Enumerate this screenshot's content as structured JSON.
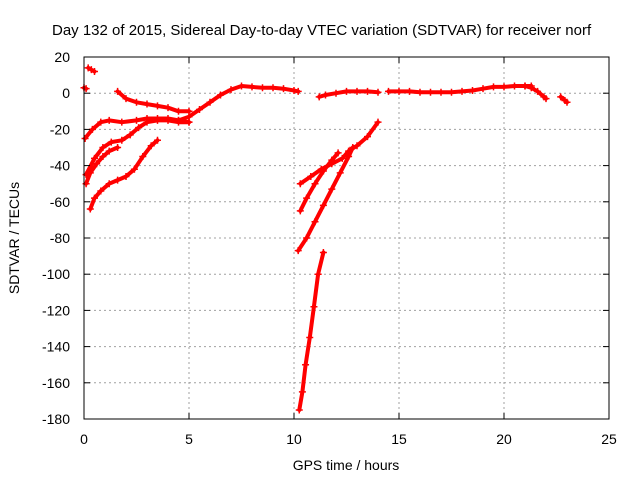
{
  "chart_data": {
    "type": "scatter",
    "title": "Day 132 of 2015, Sidereal Day-to-day VTEC variation (SDTVAR) for receiver norf",
    "xlabel": "GPS time / hours",
    "ylabel": "SDTVAR / TECUs",
    "xlim": [
      0,
      25
    ],
    "ylim": [
      -180,
      20
    ],
    "xticks": [
      0,
      5,
      10,
      15,
      20,
      25
    ],
    "yticks": [
      20,
      0,
      -20,
      -40,
      -60,
      -80,
      -100,
      -120,
      -140,
      -160,
      -180
    ],
    "grid": true,
    "marker": "plus",
    "color": "#ff0000",
    "series": [
      {
        "points": [
          [
            0.0,
            3
          ],
          [
            0.1,
            2.5
          ]
        ]
      },
      {
        "points": [
          [
            0.2,
            14
          ],
          [
            0.35,
            13
          ],
          [
            0.5,
            12
          ]
        ]
      },
      {
        "points": [
          [
            0.05,
            -25
          ],
          [
            0.4,
            -20
          ],
          [
            0.8,
            -16
          ],
          [
            1.2,
            -15
          ],
          [
            1.8,
            -16
          ],
          [
            2.5,
            -15
          ],
          [
            3.0,
            -14
          ],
          [
            3.5,
            -14
          ],
          [
            4.0,
            -14
          ],
          [
            4.5,
            -15
          ],
          [
            5.0,
            -16
          ]
        ]
      },
      {
        "points": [
          [
            0.1,
            -45
          ],
          [
            0.5,
            -36
          ],
          [
            0.9,
            -30
          ],
          [
            1.3,
            -27
          ],
          [
            1.8,
            -26
          ],
          [
            2.2,
            -23
          ],
          [
            2.6,
            -19
          ],
          [
            3.0,
            -16
          ],
          [
            3.5,
            -15
          ],
          [
            4.0,
            -15
          ],
          [
            4.5,
            -16
          ],
          [
            5.0,
            -16
          ]
        ]
      },
      {
        "points": [
          [
            0.1,
            -50
          ],
          [
            0.3,
            -44
          ],
          [
            0.6,
            -39
          ],
          [
            0.9,
            -35
          ],
          [
            1.2,
            -32
          ],
          [
            1.6,
            -30
          ]
        ]
      },
      {
        "points": [
          [
            0.3,
            -64
          ],
          [
            0.5,
            -58
          ],
          [
            0.8,
            -54
          ],
          [
            1.2,
            -50
          ],
          [
            1.6,
            -48
          ],
          [
            2.0,
            -46
          ],
          [
            2.4,
            -42
          ],
          [
            2.8,
            -35
          ],
          [
            3.2,
            -29
          ],
          [
            3.5,
            -26
          ]
        ]
      },
      {
        "points": [
          [
            1.6,
            1
          ],
          [
            2.0,
            -3
          ],
          [
            2.5,
            -5
          ],
          [
            3.0,
            -6
          ],
          [
            3.5,
            -7
          ],
          [
            4.0,
            -8
          ],
          [
            4.5,
            -10
          ],
          [
            5.0,
            -10
          ]
        ]
      },
      {
        "points": [
          [
            4.5,
            -15
          ],
          [
            5.0,
            -13
          ],
          [
            5.5,
            -9
          ],
          [
            6.0,
            -5
          ],
          [
            6.5,
            -1
          ],
          [
            7.0,
            2
          ],
          [
            7.5,
            4
          ],
          [
            8.0,
            3.5
          ],
          [
            8.5,
            3
          ],
          [
            9.0,
            3
          ],
          [
            9.5,
            2.5
          ],
          [
            10.0,
            1.5
          ],
          [
            10.2,
            1
          ]
        ]
      },
      {
        "points": [
          [
            11.2,
            -2
          ],
          [
            11.5,
            -1
          ],
          [
            12.0,
            0
          ],
          [
            12.5,
            1
          ],
          [
            13.0,
            1
          ],
          [
            13.5,
            1
          ],
          [
            14.0,
            0.5
          ]
        ]
      },
      {
        "points": [
          [
            14.5,
            1
          ],
          [
            15.0,
            1
          ],
          [
            15.5,
            1
          ],
          [
            16.0,
            0.5
          ],
          [
            16.5,
            0.5
          ],
          [
            17.0,
            0.5
          ],
          [
            17.5,
            0.5
          ],
          [
            18.0,
            1
          ],
          [
            18.5,
            1.5
          ],
          [
            19.0,
            2.5
          ],
          [
            19.5,
            3.5
          ],
          [
            20.0,
            3.5
          ],
          [
            20.5,
            4
          ],
          [
            21.0,
            4
          ],
          [
            21.3,
            4
          ]
        ]
      },
      {
        "points": [
          [
            21.0,
            4
          ],
          [
            21.3,
            3
          ],
          [
            21.6,
            1
          ],
          [
            21.9,
            -2
          ],
          [
            22.0,
            -3
          ]
        ]
      },
      {
        "points": [
          [
            22.7,
            -2
          ],
          [
            22.9,
            -4
          ],
          [
            23.0,
            -5
          ]
        ]
      },
      {
        "points": [
          [
            10.3,
            -50
          ],
          [
            10.8,
            -46
          ],
          [
            11.3,
            -42
          ],
          [
            11.8,
            -39
          ],
          [
            12.3,
            -36
          ],
          [
            12.6,
            -32
          ],
          [
            13.0,
            -29
          ],
          [
            13.5,
            -24
          ],
          [
            14.0,
            -16
          ]
        ]
      },
      {
        "points": [
          [
            10.3,
            -65
          ],
          [
            10.6,
            -58
          ],
          [
            11.0,
            -50
          ],
          [
            11.4,
            -43
          ],
          [
            11.8,
            -37
          ],
          [
            12.1,
            -33
          ]
        ]
      },
      {
        "points": [
          [
            10.2,
            -87
          ],
          [
            10.6,
            -80
          ],
          [
            11.0,
            -71
          ],
          [
            11.4,
            -62
          ],
          [
            11.8,
            -53
          ],
          [
            12.2,
            -44
          ],
          [
            12.6,
            -35
          ],
          [
            12.8,
            -30
          ]
        ]
      },
      {
        "points": [
          [
            10.25,
            -175
          ],
          [
            10.4,
            -165
          ],
          [
            10.55,
            -150
          ],
          [
            10.75,
            -135
          ],
          [
            10.95,
            -118
          ],
          [
            11.15,
            -100
          ],
          [
            11.4,
            -88
          ]
        ]
      }
    ]
  }
}
